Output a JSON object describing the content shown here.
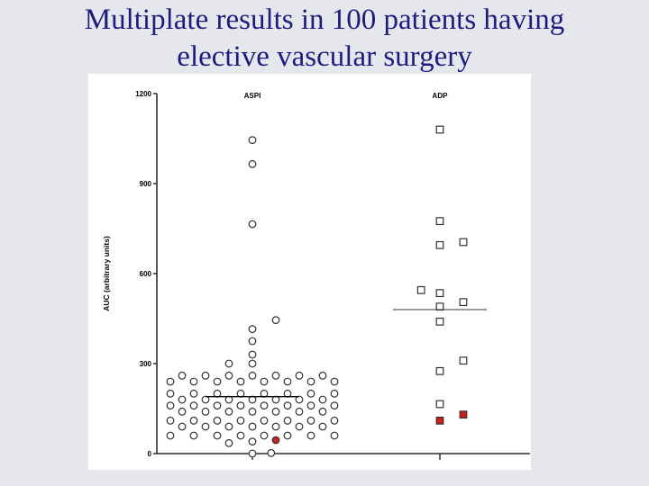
{
  "slide": {
    "title_line1": "Multiplate results in 100 patients having",
    "title_line2": "elective vascular surgery"
  },
  "chart_data": {
    "type": "scatter",
    "title": "",
    "ylabel": "AUC (arbitrary units)",
    "xlabel": "",
    "categories": [
      "ASPI",
      "ADP"
    ],
    "ylim": [
      0,
      1200
    ],
    "yticks": [
      0,
      300,
      600,
      900,
      1200
    ],
    "grid": false,
    "colors": {
      "normal_fill": "#ffffff",
      "highlight_fill": "#cc2020",
      "marker_stroke": "#333333"
    },
    "series": [
      {
        "category": "ASPI",
        "marker": "circle",
        "median": 190,
        "points": [
          {
            "offset": -0.15,
            "y": 260
          },
          {
            "offset": -0.1,
            "y": 260
          },
          {
            "offset": -0.05,
            "y": 260
          },
          {
            "offset": 0.0,
            "y": 260
          },
          {
            "offset": 0.05,
            "y": 260
          },
          {
            "offset": 0.1,
            "y": 260
          },
          {
            "offset": 0.15,
            "y": 260
          },
          {
            "offset": -0.175,
            "y": 240
          },
          {
            "offset": -0.125,
            "y": 240
          },
          {
            "offset": -0.075,
            "y": 240
          },
          {
            "offset": -0.025,
            "y": 240
          },
          {
            "offset": 0.025,
            "y": 240
          },
          {
            "offset": 0.075,
            "y": 240
          },
          {
            "offset": 0.125,
            "y": 240
          },
          {
            "offset": 0.175,
            "y": 240
          },
          {
            "offset": -0.175,
            "y": 200
          },
          {
            "offset": -0.125,
            "y": 200
          },
          {
            "offset": -0.075,
            "y": 200
          },
          {
            "offset": -0.025,
            "y": 200
          },
          {
            "offset": 0.025,
            "y": 200
          },
          {
            "offset": 0.075,
            "y": 200
          },
          {
            "offset": 0.125,
            "y": 200
          },
          {
            "offset": 0.175,
            "y": 200
          },
          {
            "offset": -0.15,
            "y": 180
          },
          {
            "offset": -0.1,
            "y": 180
          },
          {
            "offset": -0.05,
            "y": 180
          },
          {
            "offset": 0.0,
            "y": 180
          },
          {
            "offset": 0.05,
            "y": 180
          },
          {
            "offset": 0.1,
            "y": 180
          },
          {
            "offset": 0.15,
            "y": 180
          },
          {
            "offset": -0.175,
            "y": 160
          },
          {
            "offset": -0.125,
            "y": 160
          },
          {
            "offset": -0.075,
            "y": 160
          },
          {
            "offset": -0.025,
            "y": 160
          },
          {
            "offset": 0.025,
            "y": 160
          },
          {
            "offset": 0.075,
            "y": 160
          },
          {
            "offset": 0.125,
            "y": 160
          },
          {
            "offset": 0.175,
            "y": 160
          },
          {
            "offset": -0.15,
            "y": 140
          },
          {
            "offset": -0.1,
            "y": 140
          },
          {
            "offset": -0.05,
            "y": 140
          },
          {
            "offset": 0.0,
            "y": 140
          },
          {
            "offset": 0.05,
            "y": 140
          },
          {
            "offset": 0.1,
            "y": 140
          },
          {
            "offset": 0.15,
            "y": 140
          },
          {
            "offset": -0.175,
            "y": 110
          },
          {
            "offset": -0.125,
            "y": 110
          },
          {
            "offset": -0.075,
            "y": 110
          },
          {
            "offset": -0.025,
            "y": 110
          },
          {
            "offset": 0.025,
            "y": 110
          },
          {
            "offset": 0.075,
            "y": 110
          },
          {
            "offset": 0.125,
            "y": 110
          },
          {
            "offset": 0.175,
            "y": 110
          },
          {
            "offset": -0.15,
            "y": 90
          },
          {
            "offset": -0.1,
            "y": 90
          },
          {
            "offset": -0.05,
            "y": 90
          },
          {
            "offset": 0.0,
            "y": 90
          },
          {
            "offset": 0.05,
            "y": 90
          },
          {
            "offset": 0.1,
            "y": 90
          },
          {
            "offset": 0.15,
            "y": 90
          },
          {
            "offset": -0.175,
            "y": 60
          },
          {
            "offset": -0.125,
            "y": 60
          },
          {
            "offset": -0.075,
            "y": 60
          },
          {
            "offset": -0.025,
            "y": 60
          },
          {
            "offset": 0.025,
            "y": 60
          },
          {
            "offset": 0.075,
            "y": 60
          },
          {
            "offset": 0.125,
            "y": 60
          },
          {
            "offset": 0.175,
            "y": 60
          },
          {
            "offset": -0.05,
            "y": 35
          },
          {
            "offset": 0.0,
            "y": 40
          },
          {
            "offset": 0.05,
            "y": 45,
            "highlight": true
          },
          {
            "offset": 0.0,
            "y": 0
          },
          {
            "offset": 0.04,
            "y": 2
          },
          {
            "offset": -0.05,
            "y": 300
          },
          {
            "offset": 0.0,
            "y": 300
          },
          {
            "offset": 0.0,
            "y": 330
          },
          {
            "offset": 0.0,
            "y": 375
          },
          {
            "offset": 0.0,
            "y": 415
          },
          {
            "offset": 0.05,
            "y": 445
          },
          {
            "offset": 0.0,
            "y": 765
          },
          {
            "offset": 0.0,
            "y": 965
          },
          {
            "offset": 0.0,
            "y": 1045
          }
        ]
      },
      {
        "category": "ADP",
        "marker": "square",
        "median": 480,
        "points": [
          {
            "offset": 0.0,
            "y": 1080
          },
          {
            "offset": 0.0,
            "y": 775
          },
          {
            "offset": 0.0,
            "y": 695
          },
          {
            "offset": 0.05,
            "y": 705
          },
          {
            "offset": -0.04,
            "y": 545
          },
          {
            "offset": 0.0,
            "y": 535
          },
          {
            "offset": 0.05,
            "y": 505
          },
          {
            "offset": 0.0,
            "y": 490
          },
          {
            "offset": 0.0,
            "y": 440
          },
          {
            "offset": 0.05,
            "y": 310
          },
          {
            "offset": 0.0,
            "y": 275
          },
          {
            "offset": 0.0,
            "y": 165
          },
          {
            "offset": 0.05,
            "y": 130,
            "highlight": true
          },
          {
            "offset": 0.0,
            "y": 110,
            "highlight": true
          }
        ]
      }
    ]
  }
}
